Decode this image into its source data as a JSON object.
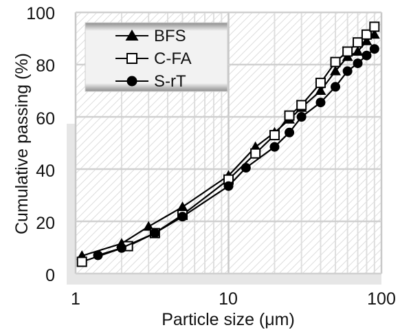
{
  "chart_data": {
    "type": "line",
    "title": "",
    "xlabel": "Particle size (μm)",
    "ylabel": "Cumulative passing (%)",
    "xscale": "log",
    "xlim": [
      1,
      100
    ],
    "ylim": [
      0,
      100
    ],
    "xticks": [
      "1",
      "10",
      "100"
    ],
    "yticks": [
      "0",
      "20",
      "40",
      "60",
      "80",
      "100"
    ],
    "grid": true,
    "legend": "top-left",
    "series": [
      {
        "name": "BFS",
        "marker": "filled-triangle",
        "color": "#000000",
        "x": [
          1.1,
          2.0,
          3.0,
          5.0,
          10.0,
          15.0,
          20.0,
          25.0,
          30.0,
          40.0,
          50.0,
          60.0,
          70.0,
          80.0,
          90.0
        ],
        "y": [
          6.8,
          11.5,
          18.0,
          25.5,
          37.5,
          48.5,
          54.0,
          59.0,
          63.5,
          70.0,
          77.5,
          83.0,
          85.0,
          89.0,
          91.5
        ]
      },
      {
        "name": "C-FA",
        "marker": "open-square",
        "color": "#000000",
        "x": [
          1.1,
          2.2,
          3.3,
          5.0,
          10.0,
          15.0,
          20.0,
          25.0,
          30.0,
          40.0,
          50.0,
          60.0,
          70.0,
          80.0,
          90.0
        ],
        "y": [
          4.5,
          10.5,
          15.5,
          22.5,
          36.0,
          46.0,
          53.0,
          60.5,
          64.5,
          73.0,
          81.0,
          85.0,
          88.5,
          91.5,
          94.5
        ]
      },
      {
        "name": "S-rT",
        "marker": "filled-circle",
        "color": "#000000",
        "x": [
          1.4,
          2.0,
          3.3,
          5.0,
          10.0,
          13.0,
          20.0,
          25.0,
          30.0,
          40.0,
          50.0,
          60.0,
          70.0,
          80.0,
          90.0
        ],
        "y": [
          7.0,
          9.8,
          15.5,
          21.8,
          33.5,
          40.5,
          48.5,
          54.0,
          60.0,
          65.5,
          71.5,
          77.5,
          80.5,
          83.5,
          86.0
        ]
      }
    ]
  }
}
